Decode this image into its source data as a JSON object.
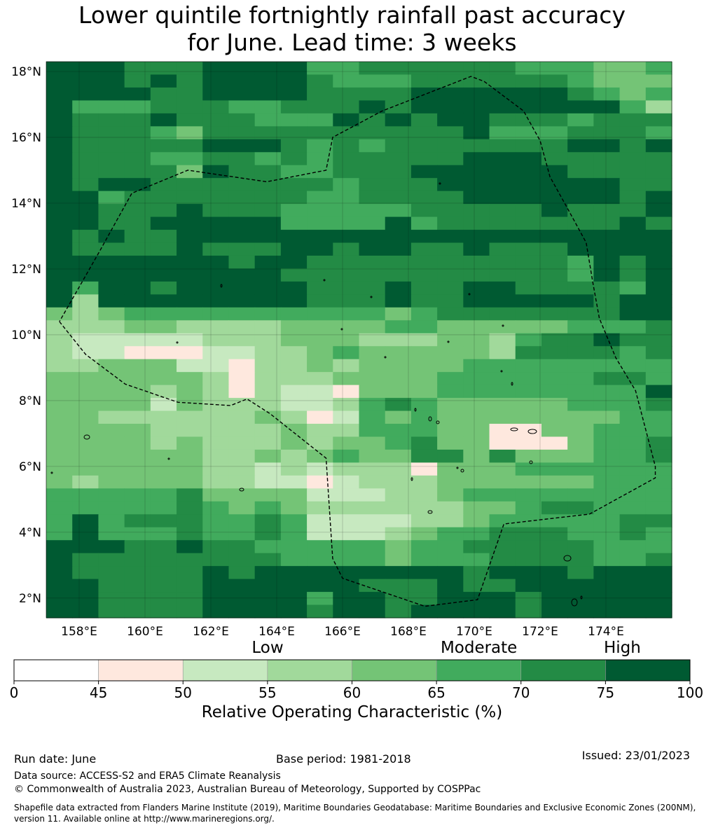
{
  "title_line1": "Lower quintile fortnightly rainfall past accuracy",
  "title_line2": "for June. Lead time: 3 weeks",
  "map": {
    "lon_ticks": [
      "158°E",
      "160°E",
      "162°E",
      "164°E",
      "166°E",
      "168°E",
      "170°E",
      "172°E",
      "174°E"
    ],
    "lat_ticks": [
      "18°N",
      "16°N",
      "14°N",
      "12°N",
      "10°N",
      "8°N",
      "6°N",
      "4°N",
      "2°N"
    ],
    "lon_range": [
      157.0,
      176.0
    ],
    "lat_range": [
      1.4,
      18.3
    ],
    "grid_codes": [
      "777666777755666666555445",
      "777676777765556666665444",
      "777766777766667777776545",
      "755566655666767777777753",
      "766676665557676776665666",
      "766654666666666675556665",
      "766666777656566666667767",
      "766655665656666677766666",
      "766664766556667777776666",
      "767766666665666777777766",
      "775666666655666677777767",
      "776667666555556666676667",
      "776677777555575666666676",
      "767667777777777777777777",
      "766667666776776676667777",
      "777777767766666666665767",
      "777777777666666666665767",
      "757767777766676677666657",
      "737777777766676677777677",
      "434555555555545666666677",
      "333443333444455444445556",
      "322222333444333443566766",
      "322111223345444443666656",
      "334442213343444455555555",
      "444444313334444555555665",
      "444434313221444555555557",
      "444424333223565444445556",
      "443333334312545444444455",
      "444433333433555441144555",
      "444434333434456441114556",
      "444444334345446646444556",
      "444444332323331444555555",
      "434444332212333444444555",
      "555556444422233455555555",
      "555556545433333344566555",
      "575666556522223345555566",
      "575556556522234556665565",
      "777667665555545566666555",
      "766666666555545556666556",
      "766666767777777767776777",
      "776666777777666766777777",
      "776666777757766777677777",
      "776666777767767777677777"
    ],
    "eez_boundary": [
      [
        157.4,
        10.4
      ],
      [
        158.2,
        9.4
      ],
      [
        159.4,
        8.5
      ],
      [
        161.0,
        7.95
      ],
      [
        162.6,
        7.85
      ],
      [
        163.1,
        8.05
      ],
      [
        163.8,
        7.6
      ],
      [
        165.5,
        6.25
      ],
      [
        165.7,
        3.2
      ],
      [
        166.0,
        2.6
      ],
      [
        168.5,
        1.75
      ],
      [
        170.1,
        1.95
      ],
      [
        170.9,
        4.25
      ],
      [
        173.5,
        4.55
      ],
      [
        175.5,
        5.65
      ],
      [
        175.5,
        6.0
      ],
      [
        174.9,
        8.3
      ],
      [
        174.3,
        9.3
      ],
      [
        173.8,
        10.5
      ],
      [
        173.6,
        11.6
      ],
      [
        173.4,
        12.8
      ],
      [
        172.8,
        13.9
      ],
      [
        172.3,
        14.8
      ],
      [
        172.0,
        15.9
      ],
      [
        171.5,
        16.8
      ],
      [
        170.3,
        17.7
      ],
      [
        169.9,
        17.85
      ],
      [
        167.2,
        16.8
      ],
      [
        165.7,
        16.0
      ],
      [
        165.5,
        15.0
      ],
      [
        163.7,
        14.65
      ],
      [
        161.3,
        15.0
      ],
      [
        159.6,
        14.3
      ],
      [
        158.6,
        12.5
      ],
      [
        157.4,
        10.4
      ]
    ]
  },
  "colorbar": {
    "levels": [
      {
        "label": "Low",
        "value": 55
      },
      {
        "label": "Moderate",
        "value": 67.5
      },
      {
        "label": "High",
        "value": 80
      }
    ],
    "ticks": [
      "0",
      "45",
      "50",
      "55",
      "60",
      "65",
      "70",
      "75",
      "100"
    ],
    "colors": [
      "#ffffff",
      "#fee8de",
      "#c7e9c0",
      "#a1d99b",
      "#74c476",
      "#41ab5d",
      "#238b45",
      "#005a32"
    ],
    "title": "Relative Operating Characteristic (%)"
  },
  "footer": {
    "run_date": "Run date: June",
    "base_period": "Base period: 1981-2018",
    "issued": "Issued: 23/01/2023",
    "data_source": "Data source: ACCESS-S2 and ERA5 Climate Reanalysis",
    "copyright": "© Commonwealth of Australia 2023, Australian Bureau of Meteorology, Supported by COSPPac",
    "shapefile_line1": "Shapefile data extracted from Flanders Marine Institute (2019), Maritime Boundaries Geodatabase: Maritime Boundaries and Exclusive Economic Zones (200NM),",
    "shapefile_line2": "version 11. Available online at http://www.marineregions.org/."
  }
}
